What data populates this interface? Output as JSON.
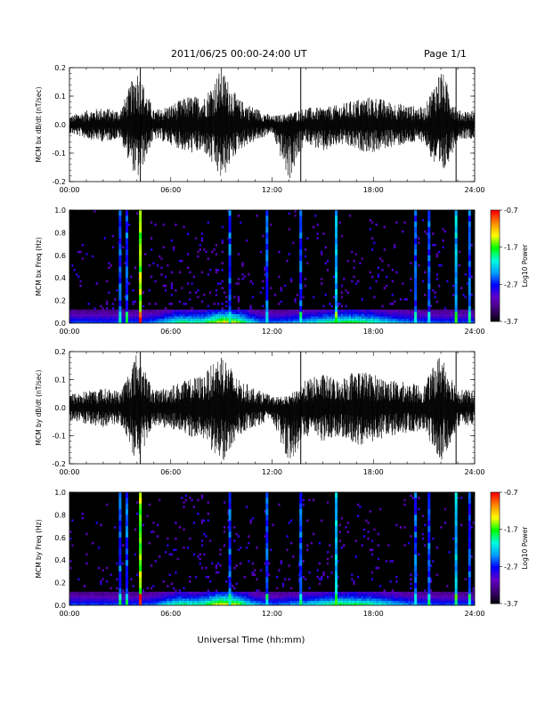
{
  "header": {
    "title": "2011/06/25  00:00-24:00 UT",
    "page": "Page 1/1"
  },
  "footer": {
    "xlabel": "Universal Time (hh:mm)"
  },
  "colorbar": {
    "title": "Log10 Power",
    "range": [
      -3.7,
      -0.7
    ],
    "ticks": [
      "-0.7",
      "-1.7",
      "-2.7",
      "-3.7"
    ]
  },
  "chart_data": [
    {
      "type": "line",
      "title": "",
      "xlabel": "",
      "ylabel": "MCM bx dB/dt (nT/sec)",
      "x_ticks": [
        "00:00",
        "06:00",
        "12:00",
        "18:00",
        "24:00"
      ],
      "y_ticks": [
        "-0.2",
        "-0.1",
        "0.0",
        "0.1",
        "0.2"
      ],
      "xlim_hours": [
        0,
        24
      ],
      "ylim": [
        -0.2,
        0.2
      ],
      "series": [
        {
          "name": "",
          "x_hours": [
            0,
            1,
            2,
            3,
            4,
            5,
            6,
            7,
            8,
            9,
            10,
            11,
            12,
            13,
            14,
            15,
            16,
            17,
            18,
            19,
            20,
            21,
            22,
            23,
            24
          ],
          "envelope_max": [
            0.03,
            0.05,
            0.06,
            0.05,
            0.2,
            0.05,
            0.07,
            0.1,
            0.1,
            0.2,
            0.09,
            0.06,
            0.03,
            0.04,
            0.06,
            0.06,
            0.07,
            0.09,
            0.1,
            0.08,
            0.07,
            0.06,
            0.2,
            0.05,
            0.05
          ],
          "envelope_min": [
            -0.03,
            -0.05,
            -0.06,
            -0.05,
            -0.2,
            -0.05,
            -0.07,
            -0.1,
            -0.1,
            -0.2,
            -0.09,
            -0.06,
            -0.03,
            -0.2,
            -0.06,
            -0.1,
            -0.07,
            -0.09,
            -0.1,
            -0.08,
            -0.07,
            -0.06,
            -0.2,
            -0.05,
            -0.05
          ]
        }
      ],
      "spikes_hours": [
        4.2,
        13.7,
        22.9
      ],
      "grid": false
    },
    {
      "type": "heatmap",
      "title": "",
      "xlabel": "",
      "ylabel": "MCM bx Freq (Hz)",
      "x_ticks": [
        "00:00",
        "06:00",
        "12:00",
        "18:00",
        "24:00"
      ],
      "y_ticks": [
        "0.0",
        "0.2",
        "0.4",
        "0.6",
        "0.8",
        "1.0"
      ],
      "xlim_hours": [
        0,
        24
      ],
      "ylim": [
        0,
        1
      ],
      "vertical_stripes_hours": [
        3.0,
        3.4,
        4.2,
        9.5,
        11.7,
        13.7,
        15.8,
        20.5,
        21.3,
        22.9,
        23.7
      ],
      "colorbar": "log10 power, -3.7 to -0.7",
      "grid": false
    },
    {
      "type": "line",
      "title": "",
      "xlabel": "",
      "ylabel": "MCM by dB/dt (nT/sec)",
      "x_ticks": [
        "00:00",
        "06:00",
        "12:00",
        "18:00",
        "24:00"
      ],
      "y_ticks": [
        "-0.2",
        "-0.1",
        "0.0",
        "0.1",
        "0.2"
      ],
      "xlim_hours": [
        0,
        24
      ],
      "ylim": [
        -0.2,
        0.2
      ],
      "series": [
        {
          "name": "",
          "x_hours": [
            0,
            1,
            2,
            3,
            4,
            5,
            6,
            7,
            8,
            9,
            10,
            11,
            12,
            13,
            14,
            15,
            16,
            17,
            18,
            19,
            20,
            21,
            22,
            23,
            24
          ],
          "envelope_max": [
            0.05,
            0.06,
            0.07,
            0.06,
            0.2,
            0.06,
            0.08,
            0.1,
            0.12,
            0.2,
            0.1,
            0.07,
            0.04,
            0.04,
            0.1,
            0.12,
            0.1,
            0.14,
            0.12,
            0.1,
            0.09,
            0.08,
            0.2,
            0.07,
            0.06
          ],
          "envelope_min": [
            -0.05,
            -0.06,
            -0.07,
            -0.06,
            -0.2,
            -0.06,
            -0.08,
            -0.1,
            -0.12,
            -0.2,
            -0.1,
            -0.07,
            -0.04,
            -0.2,
            -0.1,
            -0.12,
            -0.1,
            -0.14,
            -0.12,
            -0.1,
            -0.09,
            -0.08,
            -0.2,
            -0.07,
            -0.06
          ]
        }
      ],
      "spikes_hours": [
        4.2,
        13.7,
        22.9
      ],
      "grid": false
    },
    {
      "type": "heatmap",
      "title": "",
      "xlabel": "",
      "ylabel": "MCM by Freq (Hz)",
      "x_ticks": [
        "00:00",
        "06:00",
        "12:00",
        "18:00",
        "24:00"
      ],
      "y_ticks": [
        "0.0",
        "0.2",
        "0.4",
        "0.6",
        "0.8",
        "1.0"
      ],
      "xlim_hours": [
        0,
        24
      ],
      "ylim": [
        0,
        1
      ],
      "vertical_stripes_hours": [
        3.0,
        3.4,
        4.2,
        9.5,
        11.7,
        13.7,
        15.8,
        20.5,
        21.3,
        22.9,
        23.7
      ],
      "colorbar": "log10 power, -3.7 to -0.7",
      "grid": false
    }
  ]
}
